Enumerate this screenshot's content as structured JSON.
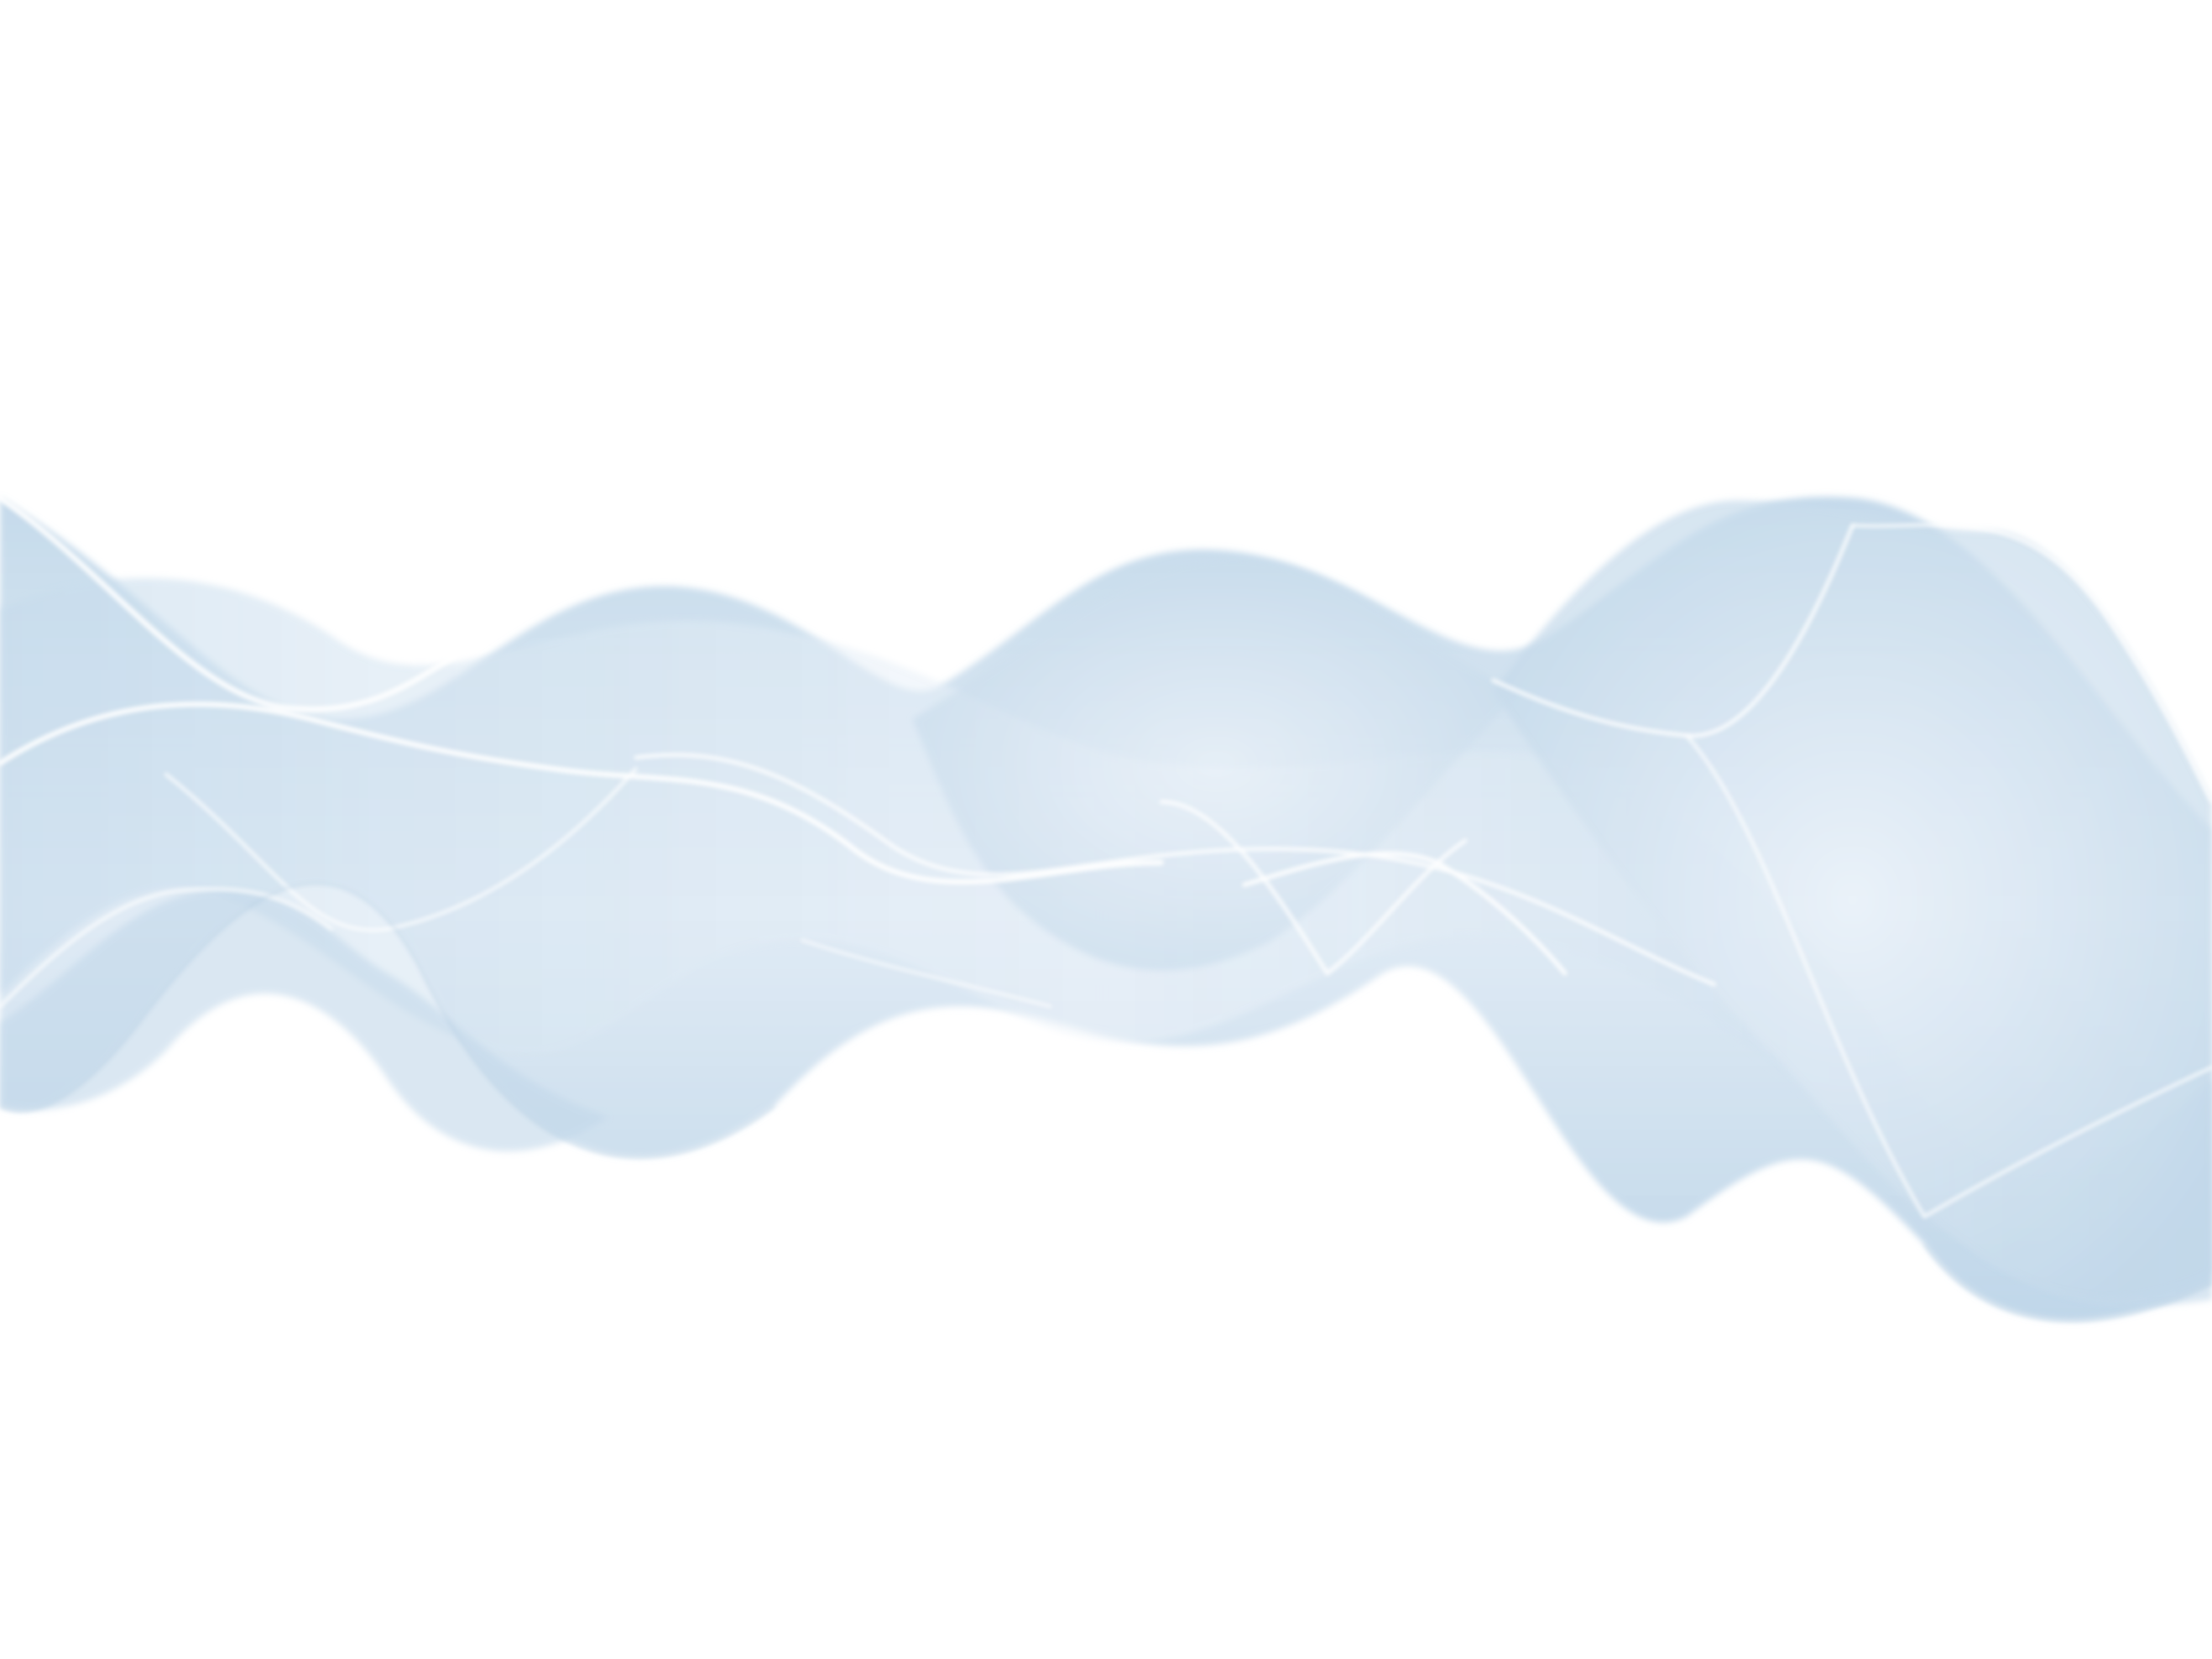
{
  "scene": {
    "subject": "translucent-light-blue-wave-ribbons",
    "background_color": "#ffffff",
    "colors": {
      "ribbon_fill": "#c2d8ea",
      "ribbon_fill_light": "#dbe8f3",
      "ribbon_fill_pale": "#eef4fa",
      "ribbon_edge": "#ffffff",
      "ribbon_rim": "#a9c6df"
    }
  }
}
